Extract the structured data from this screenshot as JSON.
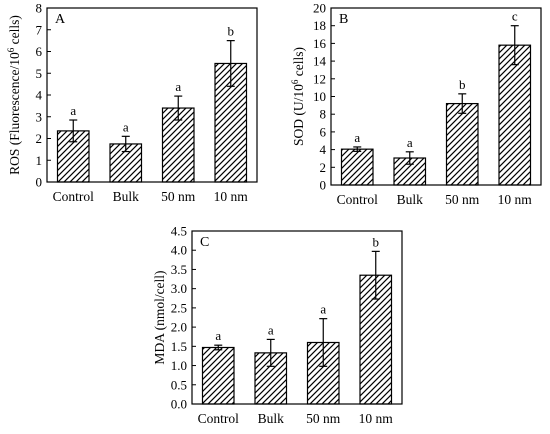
{
  "figure": {
    "background": "#ffffff",
    "ink": "#000000"
  },
  "chart_data": [
    {
      "type": "bar",
      "panel": "A",
      "ylabel": "ROS (Fluorescence/10^6 cells)",
      "ylabel_parts": [
        "ROS (Fluorescence/10",
        "6",
        " cells)"
      ],
      "categories": [
        "Control",
        "Bulk",
        "50 nm",
        "10 nm"
      ],
      "values": [
        2.35,
        1.75,
        3.4,
        5.45
      ],
      "errors": [
        0.5,
        0.35,
        0.55,
        1.05
      ],
      "significance": [
        "a",
        "a",
        "a",
        "b"
      ],
      "ylim": [
        0,
        8
      ],
      "yticks": [
        0,
        1,
        2,
        3,
        4,
        5,
        6,
        7,
        8
      ],
      "grid": false,
      "bar_fill": "hatched"
    },
    {
      "type": "bar",
      "panel": "B",
      "ylabel": "SOD (U/10^6 cells)",
      "ylabel_parts": [
        "SOD (U/10",
        "6",
        " cells)"
      ],
      "categories": [
        "Control",
        "Bulk",
        "50 nm",
        "10 nm"
      ],
      "values": [
        4.05,
        3.05,
        9.2,
        15.8
      ],
      "errors": [
        0.25,
        0.7,
        1.1,
        2.2
      ],
      "significance": [
        "a",
        "a",
        "b",
        "c"
      ],
      "ylim": [
        0,
        20
      ],
      "yticks": [
        0,
        2,
        4,
        6,
        8,
        10,
        12,
        14,
        16,
        18,
        20
      ],
      "grid": false,
      "bar_fill": "hatched"
    },
    {
      "type": "bar",
      "panel": "C",
      "ylabel": "MDA (nmol/cell)",
      "ylabel_parts": [
        "MDA (nmol/cell)"
      ],
      "categories": [
        "Control",
        "Bulk",
        "50 nm",
        "10 nm"
      ],
      "values": [
        1.47,
        1.33,
        1.6,
        3.35
      ],
      "errors": [
        0.06,
        0.35,
        0.62,
        0.62
      ],
      "significance": [
        "a",
        "a",
        "a",
        "b"
      ],
      "ylim": [
        0,
        4.5
      ],
      "yticks": [
        "0.0",
        "0.5",
        "1.0",
        "1.5",
        "2.0",
        "2.5",
        "3.0",
        "3.5",
        "4.0",
        "4.5"
      ],
      "grid": false,
      "bar_fill": "hatched"
    }
  ]
}
